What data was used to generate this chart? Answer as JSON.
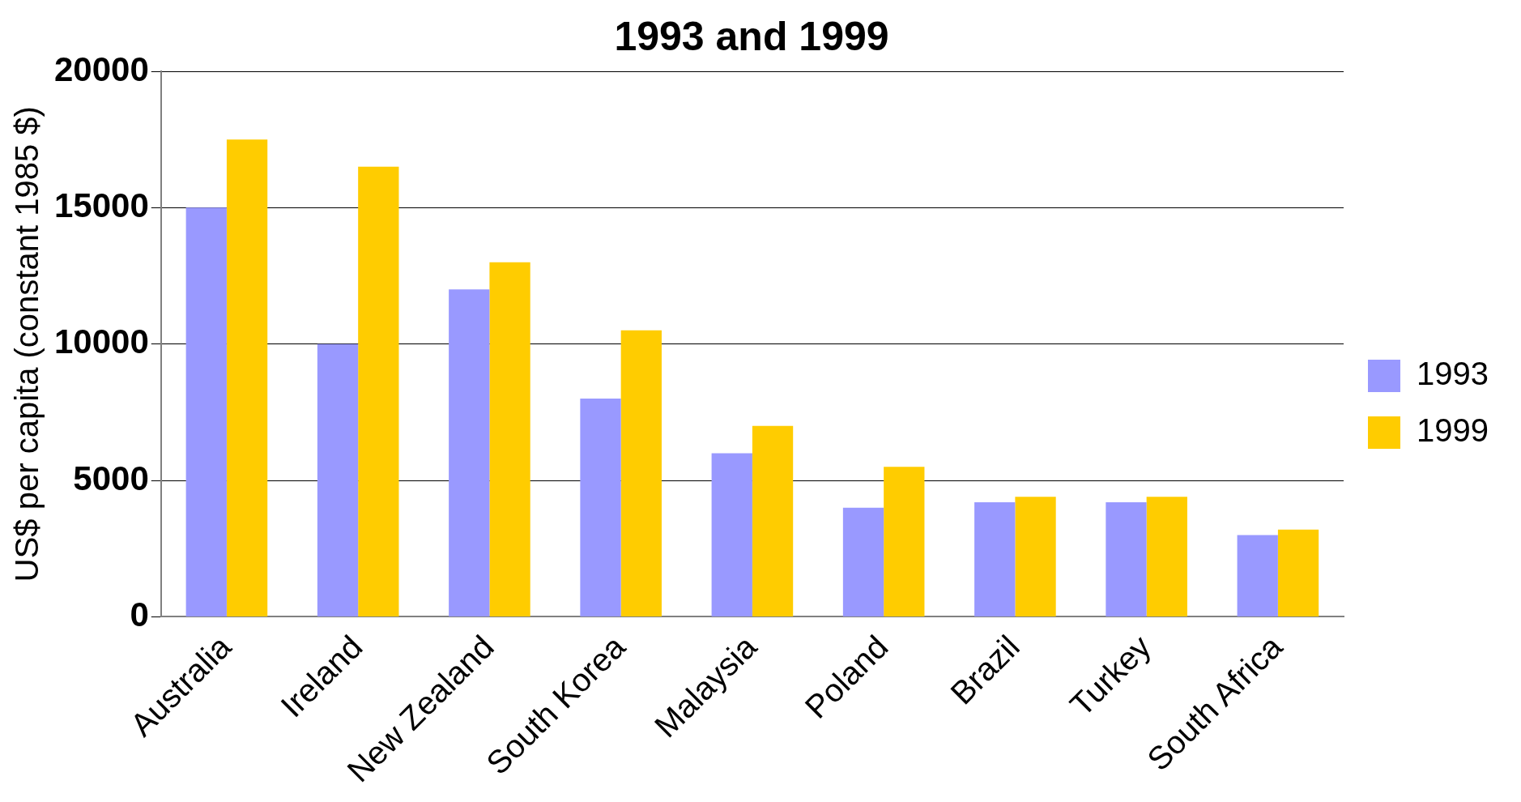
{
  "chart_data": {
    "type": "bar",
    "title": "1993 and 1999",
    "ylabel": "US$ per capita (constant 1985 $)",
    "categories": [
      "Australia",
      "Ireland",
      "New Zealand",
      "South Korea",
      "Malaysia",
      "Poland",
      "Brazil",
      "Turkey",
      "South Africa"
    ],
    "series": [
      {
        "name": "1993",
        "color": "#9999ff",
        "values": [
          15000,
          10000,
          12000,
          8000,
          6000,
          4000,
          4200,
          4200,
          3000
        ]
      },
      {
        "name": "1999",
        "color": "#ffcc00",
        "values": [
          17500,
          16500,
          13000,
          10500,
          7000,
          5500,
          4400,
          4400,
          3200
        ]
      }
    ],
    "ylim": [
      0,
      20000
    ],
    "yticks": [
      0,
      5000,
      10000,
      15000,
      20000
    ],
    "grid": "y",
    "legend": "right"
  }
}
